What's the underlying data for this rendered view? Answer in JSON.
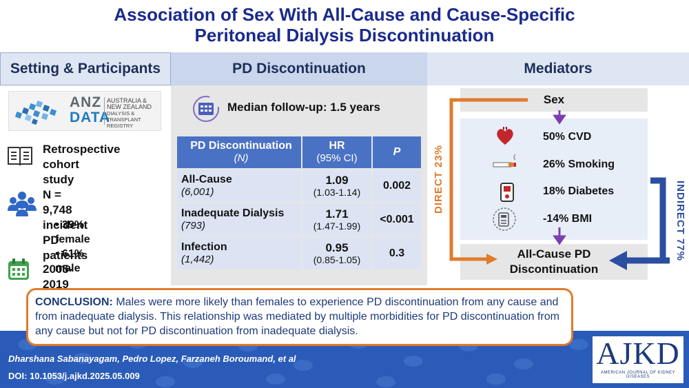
{
  "title": {
    "line1": "Association of Sex With All-Cause and Cause-Specific",
    "line2": "Peritoneal Dialysis Discontinuation"
  },
  "headers": {
    "setting": "Setting & Participants",
    "pd": "PD Discontinuation",
    "mediators": "Mediators"
  },
  "registry_logo": {
    "big1": "ANZ",
    "big2": "DATA",
    "small1": "AUSTRALIA &",
    "small2": "NEW ZEALAND",
    "small3": "DIALYSIS & TRANSPLANT",
    "small4": "REGISTRY"
  },
  "setting": {
    "design_line1": "Retrospective cohort",
    "design_line2": "study",
    "n_line1": "N = 9,748 incident",
    "n_line2": "PD patients",
    "female": "39% female",
    "male": "61% male",
    "years": "2005-2019"
  },
  "followup": "Median follow-up: 1.5 years",
  "table": {
    "col1_title": "PD Discontinuation",
    "col1_sub": "(N)",
    "col2_title": "HR",
    "col2_sub": "(95% CI)",
    "col3_title": "P",
    "rows": [
      {
        "name": "All-Cause",
        "n": "(6,001)",
        "hr": "1.09",
        "ci": "(1.03-1.14)",
        "p": "0.002"
      },
      {
        "name": "Inadequate Dialysis",
        "n": "(793)",
        "hr": "1.71",
        "ci": "(1.47-1.99)",
        "p": "<0.001"
      },
      {
        "name": "Infection",
        "n": "(1,442)",
        "hr": "0.95",
        "ci": "(0.85-1.05)",
        "p": "0.3"
      }
    ]
  },
  "mediators": {
    "sex": "Sex",
    "cvd": "50% CVD",
    "smoking": "26% Smoking",
    "diabetes": "18% Diabetes",
    "bmi": "-14% BMI",
    "outcome_line1": "All-Cause PD",
    "outcome_line2": "Discontinuation",
    "direct": "DIRECT 23%",
    "indirect": "INDIRECT 77%"
  },
  "conclusion": {
    "label": "CONCLUSION:",
    "text": "Males were more likely than females to experience PD discontinuation from any cause and from inadequate dialysis. This relationship was mediated by multiple morbidities for PD discontinuation from any cause but not for PD discontinuation from inadequate dialysis."
  },
  "footer": {
    "authors": "Dharshana Sabanayagam, Pedro Lopez, Farzaneh Boroumand, et al",
    "doi": "DOI: 10.1053/j.ajkd.2025.05.009",
    "logo": "AJKD",
    "logo_sub": "AMERICAN JOURNAL OF KIDNEY DISEASES"
  },
  "colors": {
    "title": "#1a2a8c",
    "orange": "#e07b2c",
    "blue_arrow": "#2b4ea0",
    "table_header": "#4a72c4",
    "footer": "#2a5bb8"
  }
}
